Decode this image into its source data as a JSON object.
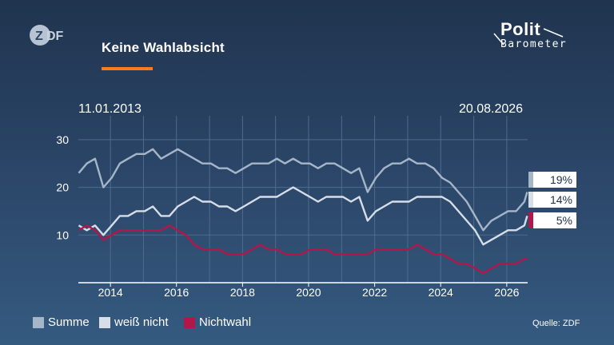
{
  "header": {
    "channel_logo": "ZDF",
    "title": "Keine Wahlabsicht",
    "brand_line1": "Polit",
    "brand_line2": "Barometer"
  },
  "dates": {
    "start": "11.01.2013",
    "end": "20.08.2026"
  },
  "source": "Quelle: ZDF",
  "colors": {
    "accent": "#ff7a1a",
    "summe": "#a5b6c9",
    "weiss_nicht": "#d6dee8",
    "nichtwahl": "#b2174b"
  },
  "chart_data": {
    "type": "line",
    "x_range": [
      "2013-01-11",
      "2026-08-20"
    ],
    "ylim": [
      0,
      35
    ],
    "yticks": [
      10,
      20,
      30
    ],
    "xticks": [
      "2014",
      "2016",
      "2018",
      "2020",
      "2022",
      "2024",
      "2026"
    ],
    "grid": true,
    "legend_position": "bottom-left",
    "series": [
      {
        "name": "Summe",
        "color": "#a5b6c9",
        "latest_label": "19%",
        "points": [
          [
            "2013-01",
            23
          ],
          [
            "2013-04",
            25
          ],
          [
            "2013-07",
            26
          ],
          [
            "2013-10",
            20
          ],
          [
            "2014-01",
            22
          ],
          [
            "2014-04",
            25
          ],
          [
            "2014-07",
            26
          ],
          [
            "2014-10",
            27
          ],
          [
            "2015-01",
            27
          ],
          [
            "2015-04",
            28
          ],
          [
            "2015-07",
            26
          ],
          [
            "2015-10",
            27
          ],
          [
            "2016-01",
            28
          ],
          [
            "2016-04",
            27
          ],
          [
            "2016-07",
            26
          ],
          [
            "2016-10",
            25
          ],
          [
            "2017-01",
            25
          ],
          [
            "2017-04",
            24
          ],
          [
            "2017-07",
            24
          ],
          [
            "2017-10",
            23
          ],
          [
            "2018-01",
            24
          ],
          [
            "2018-04",
            25
          ],
          [
            "2018-07",
            25
          ],
          [
            "2018-10",
            25
          ],
          [
            "2019-01",
            26
          ],
          [
            "2019-04",
            25
          ],
          [
            "2019-07",
            26
          ],
          [
            "2019-10",
            25
          ],
          [
            "2020-01",
            25
          ],
          [
            "2020-04",
            24
          ],
          [
            "2020-07",
            25
          ],
          [
            "2020-10",
            25
          ],
          [
            "2021-01",
            24
          ],
          [
            "2021-04",
            23
          ],
          [
            "2021-07",
            24
          ],
          [
            "2021-10",
            19
          ],
          [
            "2022-01",
            22
          ],
          [
            "2022-04",
            24
          ],
          [
            "2022-07",
            25
          ],
          [
            "2022-10",
            25
          ],
          [
            "2023-01",
            26
          ],
          [
            "2023-04",
            25
          ],
          [
            "2023-07",
            25
          ],
          [
            "2023-10",
            24
          ],
          [
            "2024-01",
            22
          ],
          [
            "2024-04",
            21
          ],
          [
            "2024-07",
            19
          ],
          [
            "2024-10",
            17
          ],
          [
            "2025-01",
            14
          ],
          [
            "2025-04",
            11
          ],
          [
            "2025-07",
            13
          ],
          [
            "2025-10",
            14
          ],
          [
            "2026-01",
            15
          ],
          [
            "2026-04",
            15
          ],
          [
            "2026-07",
            17
          ],
          [
            "2026-08",
            19
          ]
        ]
      },
      {
        "name": "weiß nicht",
        "color": "#d6dee8",
        "latest_label": "14%",
        "points": [
          [
            "2013-01",
            12
          ],
          [
            "2013-04",
            11
          ],
          [
            "2013-07",
            12
          ],
          [
            "2013-10",
            10
          ],
          [
            "2014-01",
            12
          ],
          [
            "2014-04",
            14
          ],
          [
            "2014-07",
            14
          ],
          [
            "2014-10",
            15
          ],
          [
            "2015-01",
            15
          ],
          [
            "2015-04",
            16
          ],
          [
            "2015-07",
            14
          ],
          [
            "2015-10",
            14
          ],
          [
            "2016-01",
            16
          ],
          [
            "2016-04",
            17
          ],
          [
            "2016-07",
            18
          ],
          [
            "2016-10",
            17
          ],
          [
            "2017-01",
            17
          ],
          [
            "2017-04",
            16
          ],
          [
            "2017-07",
            16
          ],
          [
            "2017-10",
            15
          ],
          [
            "2018-01",
            16
          ],
          [
            "2018-04",
            17
          ],
          [
            "2018-07",
            18
          ],
          [
            "2018-10",
            18
          ],
          [
            "2019-01",
            18
          ],
          [
            "2019-04",
            19
          ],
          [
            "2019-07",
            20
          ],
          [
            "2019-10",
            19
          ],
          [
            "2020-01",
            18
          ],
          [
            "2020-04",
            17
          ],
          [
            "2020-07",
            18
          ],
          [
            "2020-10",
            18
          ],
          [
            "2021-01",
            18
          ],
          [
            "2021-04",
            17
          ],
          [
            "2021-07",
            18
          ],
          [
            "2021-10",
            13
          ],
          [
            "2022-01",
            15
          ],
          [
            "2022-04",
            16
          ],
          [
            "2022-07",
            17
          ],
          [
            "2022-10",
            17
          ],
          [
            "2023-01",
            17
          ],
          [
            "2023-04",
            18
          ],
          [
            "2023-07",
            18
          ],
          [
            "2023-10",
            18
          ],
          [
            "2024-01",
            18
          ],
          [
            "2024-04",
            17
          ],
          [
            "2024-07",
            15
          ],
          [
            "2024-10",
            13
          ],
          [
            "2025-01",
            11
          ],
          [
            "2025-04",
            8
          ],
          [
            "2025-07",
            9
          ],
          [
            "2025-10",
            10
          ],
          [
            "2026-01",
            11
          ],
          [
            "2026-04",
            11
          ],
          [
            "2026-07",
            12
          ],
          [
            "2026-08",
            14
          ]
        ]
      },
      {
        "name": "Nichtwahl",
        "color": "#b2174b",
        "latest_label": "5%",
        "points": [
          [
            "2013-01",
            11
          ],
          [
            "2013-04",
            12
          ],
          [
            "2013-07",
            11
          ],
          [
            "2013-10",
            9
          ],
          [
            "2014-01",
            10
          ],
          [
            "2014-04",
            11
          ],
          [
            "2014-07",
            11
          ],
          [
            "2014-10",
            11
          ],
          [
            "2015-01",
            11
          ],
          [
            "2015-04",
            11
          ],
          [
            "2015-07",
            11
          ],
          [
            "2015-10",
            12
          ],
          [
            "2016-01",
            11
          ],
          [
            "2016-04",
            10
          ],
          [
            "2016-07",
            8
          ],
          [
            "2016-10",
            7
          ],
          [
            "2017-01",
            7
          ],
          [
            "2017-04",
            7
          ],
          [
            "2017-07",
            6
          ],
          [
            "2017-10",
            6
          ],
          [
            "2018-01",
            6
          ],
          [
            "2018-04",
            7
          ],
          [
            "2018-07",
            8
          ],
          [
            "2018-10",
            7
          ],
          [
            "2019-01",
            7
          ],
          [
            "2019-04",
            6
          ],
          [
            "2019-07",
            6
          ],
          [
            "2019-10",
            6
          ],
          [
            "2020-01",
            7
          ],
          [
            "2020-04",
            7
          ],
          [
            "2020-07",
            7
          ],
          [
            "2020-10",
            6
          ],
          [
            "2021-01",
            6
          ],
          [
            "2021-04",
            6
          ],
          [
            "2021-07",
            6
          ],
          [
            "2021-10",
            6
          ],
          [
            "2022-01",
            7
          ],
          [
            "2022-04",
            7
          ],
          [
            "2022-07",
            7
          ],
          [
            "2022-10",
            7
          ],
          [
            "2023-01",
            7
          ],
          [
            "2023-04",
            8
          ],
          [
            "2023-07",
            7
          ],
          [
            "2023-10",
            6
          ],
          [
            "2024-01",
            6
          ],
          [
            "2024-04",
            5
          ],
          [
            "2024-07",
            4
          ],
          [
            "2024-10",
            4
          ],
          [
            "2025-01",
            3
          ],
          [
            "2025-04",
            2
          ],
          [
            "2025-07",
            3
          ],
          [
            "2025-10",
            4
          ],
          [
            "2026-01",
            4
          ],
          [
            "2026-04",
            4
          ],
          [
            "2026-07",
            5
          ],
          [
            "2026-08",
            5
          ]
        ]
      }
    ]
  }
}
